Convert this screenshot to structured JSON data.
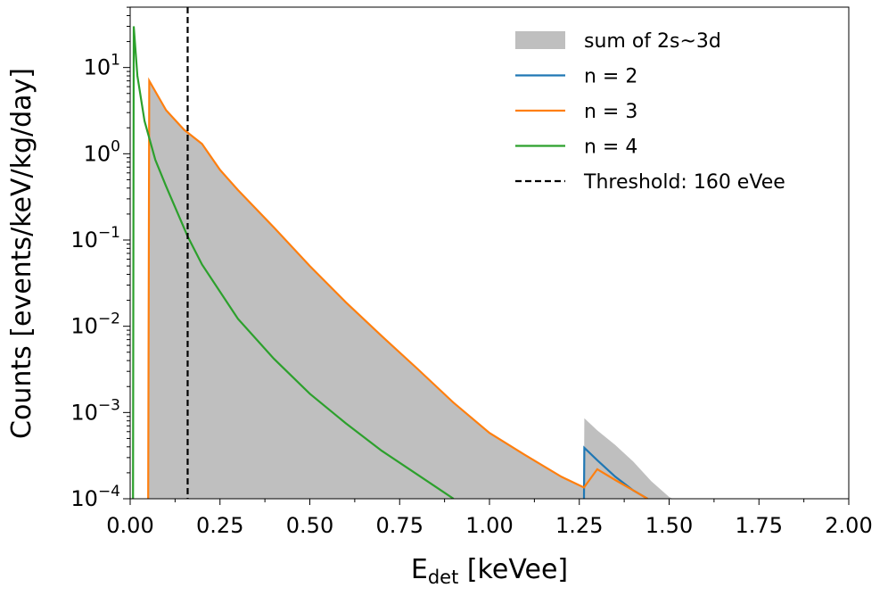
{
  "chart_data": {
    "type": "line",
    "title": "",
    "xlabel": "E",
    "xlabel_sub": "det",
    "xlabel_unit": " [keVee]",
    "ylabel": "Counts [events/keV/kg/day]",
    "xlim": [
      0.0,
      2.0
    ],
    "ylim_log10": [
      -4,
      1.7
    ],
    "y_scale": "log",
    "x_ticks": [
      0.0,
      0.25,
      0.5,
      0.75,
      1.0,
      1.25,
      1.5,
      1.75,
      2.0
    ],
    "x_tick_labels": [
      "0.00",
      "0.25",
      "0.50",
      "0.75",
      "1.00",
      "1.25",
      "1.50",
      "1.75",
      "2.00"
    ],
    "y_ticks": [
      {
        "base": "10",
        "exp": "−4",
        "log": -4
      },
      {
        "base": "10",
        "exp": "−3",
        "log": -3
      },
      {
        "base": "10",
        "exp": "−2",
        "log": -2
      },
      {
        "base": "10",
        "exp": "−1",
        "log": -1
      },
      {
        "base": "10",
        "exp": "0",
        "log": 0
      },
      {
        "base": "10",
        "exp": "1",
        "log": 1
      }
    ],
    "legend_position": "top-right",
    "threshold": {
      "x": 0.16,
      "label": "Threshold: 160 eVee",
      "color": "#000000"
    },
    "series": [
      {
        "name": "sum of 2s~3d",
        "kind": "area",
        "color": "#bfbfbf",
        "x": [
          0.0,
          0.05,
          0.053,
          0.1,
          0.15,
          0.2,
          0.25,
          0.3,
          0.4,
          0.5,
          0.6,
          0.7,
          0.8,
          0.9,
          1.0,
          1.1,
          1.2,
          1.263,
          1.264,
          1.3,
          1.35,
          1.4,
          1.45,
          1.5,
          1.51,
          2.0
        ],
        "y": [
          0.0001,
          0.0001,
          7.0,
          3.2,
          1.9,
          1.3,
          0.65,
          0.38,
          0.14,
          0.05,
          0.019,
          0.0077,
          0.0032,
          0.0013,
          0.00058,
          0.00032,
          0.00018,
          0.000135,
          0.00086,
          0.00062,
          0.00042,
          0.00027,
          0.00016,
          0.000105,
          0.0001,
          0.0001
        ]
      },
      {
        "name": "n = 2",
        "kind": "line",
        "color": "#1f77b4",
        "x": [
          1.263,
          1.264,
          1.3,
          1.35,
          1.4,
          1.44
        ],
        "y": [
          0.0001,
          0.00039,
          0.00028,
          0.00018,
          0.000125,
          0.0001
        ]
      },
      {
        "name": "n = 3",
        "kind": "line",
        "color": "#ff7f0e",
        "x": [
          0.05,
          0.053,
          0.1,
          0.15,
          0.2,
          0.25,
          0.3,
          0.4,
          0.5,
          0.6,
          0.7,
          0.8,
          0.9,
          1.0,
          1.1,
          1.2,
          1.263,
          1.3,
          1.35,
          1.4,
          1.44
        ],
        "y": [
          0.0001,
          7.0,
          3.2,
          1.9,
          1.3,
          0.65,
          0.38,
          0.14,
          0.05,
          0.019,
          0.0077,
          0.0032,
          0.0013,
          0.00058,
          0.00032,
          0.00018,
          0.000135,
          0.00022,
          0.000165,
          0.000125,
          0.0001
        ]
      },
      {
        "name": "n = 4",
        "kind": "line",
        "color": "#2ca02c",
        "x": [
          0.008,
          0.01,
          0.02,
          0.04,
          0.07,
          0.1,
          0.16,
          0.2,
          0.3,
          0.4,
          0.5,
          0.6,
          0.7,
          0.8,
          0.9
        ],
        "y": [
          0.0001,
          30.0,
          8.0,
          2.4,
          0.85,
          0.42,
          0.11,
          0.052,
          0.0122,
          0.0042,
          0.00165,
          0.00075,
          0.00036,
          0.00019,
          0.0001
        ]
      }
    ]
  }
}
